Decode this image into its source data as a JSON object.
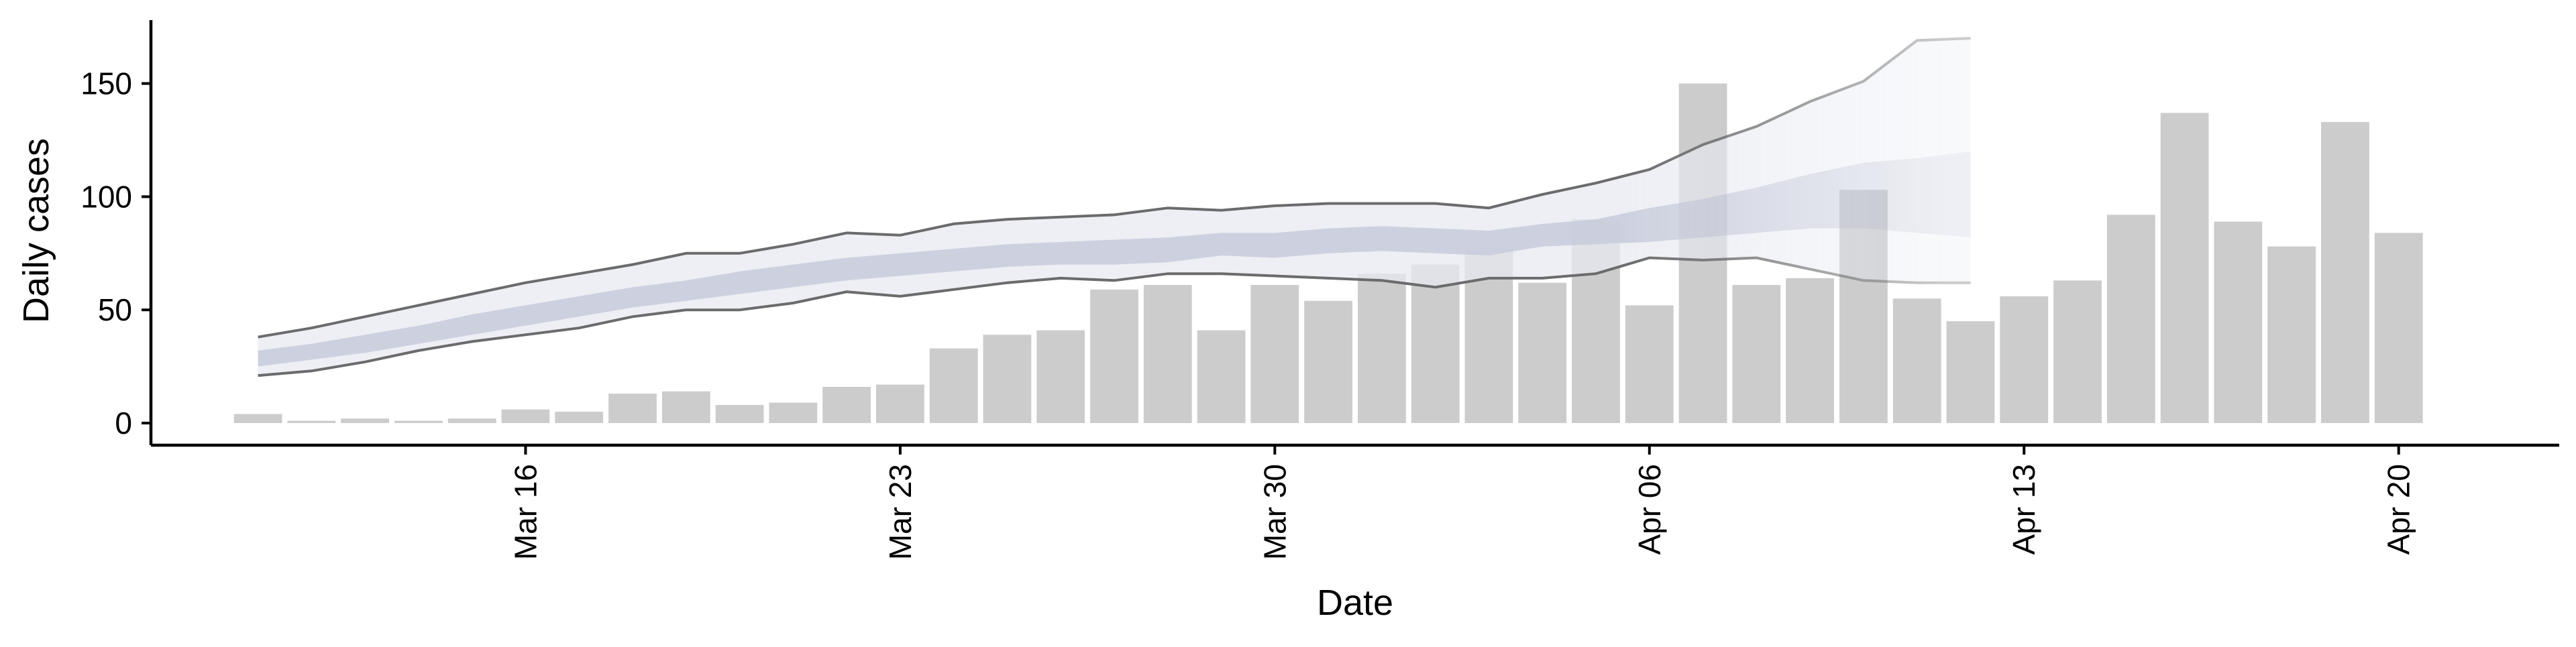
{
  "chart_data": {
    "type": "bar",
    "title": "",
    "xlabel": "Date",
    "ylabel": "Daily cases",
    "ylim": [
      -8,
      178
    ],
    "y_ticks": [
      0,
      50,
      100,
      150
    ],
    "x_tick_labels": [
      {
        "date": "2020-03-16",
        "label": "Mar 16"
      },
      {
        "date": "2020-03-23",
        "label": "Mar 23"
      },
      {
        "date": "2020-03-30",
        "label": "Mar 30"
      },
      {
        "date": "2020-04-06",
        "label": "Apr 06"
      },
      {
        "date": "2020-04-13",
        "label": "Apr 13"
      },
      {
        "date": "2020-04-20",
        "label": "Apr 20"
      }
    ],
    "xlim": [
      "2020-03-09",
      "2020-04-23"
    ],
    "grid": false,
    "colors": {
      "bars": "#cccccc",
      "inner_band": "#c8ccdc",
      "outer_band": "#e7e9f1",
      "bound_lines": "#6b6b6b",
      "axis": "#000000"
    },
    "bars": {
      "dates": [
        "2020-03-11",
        "2020-03-12",
        "2020-03-13",
        "2020-03-14",
        "2020-03-15",
        "2020-03-16",
        "2020-03-17",
        "2020-03-18",
        "2020-03-19",
        "2020-03-20",
        "2020-03-21",
        "2020-03-22",
        "2020-03-23",
        "2020-03-24",
        "2020-03-25",
        "2020-03-26",
        "2020-03-27",
        "2020-03-28",
        "2020-03-29",
        "2020-03-30",
        "2020-03-31",
        "2020-04-01",
        "2020-04-02",
        "2020-04-03",
        "2020-04-04",
        "2020-04-05",
        "2020-04-06",
        "2020-04-07",
        "2020-04-08",
        "2020-04-09",
        "2020-04-10",
        "2020-04-11",
        "2020-04-12",
        "2020-04-13",
        "2020-04-14",
        "2020-04-15",
        "2020-04-16",
        "2020-04-17",
        "2020-04-18",
        "2020-04-19",
        "2020-04-20",
        "2020-04-21"
      ],
      "values": [
        4,
        1,
        2,
        1,
        2,
        6,
        5,
        13,
        14,
        8,
        9,
        16,
        17,
        33,
        39,
        41,
        59,
        61,
        41,
        61,
        54,
        66,
        70,
        77,
        62,
        90,
        52,
        150,
        61,
        64,
        103,
        55,
        45,
        56,
        63,
        92,
        137,
        89,
        78,
        133,
        84,
        0
      ]
    },
    "estimate": {
      "dates": [
        "2020-03-11",
        "2020-03-12",
        "2020-03-13",
        "2020-03-14",
        "2020-03-15",
        "2020-03-16",
        "2020-03-17",
        "2020-03-18",
        "2020-03-19",
        "2020-03-20",
        "2020-03-21",
        "2020-03-22",
        "2020-03-23",
        "2020-03-24",
        "2020-03-25",
        "2020-03-26",
        "2020-03-27",
        "2020-03-28",
        "2020-03-29",
        "2020-03-30",
        "2020-03-31",
        "2020-04-01",
        "2020-04-02",
        "2020-04-03",
        "2020-04-04",
        "2020-04-05",
        "2020-04-06",
        "2020-04-07",
        "2020-04-08",
        "2020-04-09",
        "2020-04-10",
        "2020-04-11",
        "2020-04-12"
      ],
      "upper_90": [
        38,
        42,
        47,
        52,
        57,
        62,
        66,
        70,
        75,
        75,
        79,
        84,
        83,
        88,
        90,
        91,
        92,
        95,
        94,
        96,
        97,
        97,
        97,
        95,
        101,
        106,
        112,
        123,
        131,
        142,
        151,
        169,
        170
      ],
      "inner_upper": [
        32,
        35,
        39,
        43,
        48,
        52,
        56,
        60,
        63,
        67,
        70,
        73,
        75,
        77,
        79,
        80,
        81,
        82,
        84,
        84,
        86,
        87,
        86,
        85,
        88,
        90,
        95,
        99,
        104,
        110,
        115,
        117,
        120
      ],
      "inner_lower": [
        25,
        28,
        31,
        35,
        39,
        43,
        47,
        51,
        54,
        57,
        60,
        63,
        65,
        67,
        69,
        70,
        70,
        71,
        74,
        73,
        75,
        76,
        75,
        74,
        78,
        79,
        80,
        82,
        84,
        86,
        86,
        84,
        82
      ],
      "lower_90": [
        21,
        23,
        27,
        32,
        36,
        39,
        42,
        47,
        50,
        50,
        53,
        58,
        56,
        59,
        62,
        64,
        63,
        66,
        66,
        65,
        64,
        63,
        60,
        64,
        64,
        66,
        73,
        72,
        73,
        68,
        63,
        62,
        62
      ],
      "faded_from": "2020-04-06"
    },
    "bound_lines_dates": [
      "2020-03-11",
      "2020-03-12",
      "2020-03-13",
      "2020-03-14",
      "2020-03-15",
      "2020-03-16",
      "2020-03-17",
      "2020-03-18",
      "2020-03-19",
      "2020-03-20",
      "2020-03-21",
      "2020-03-22",
      "2020-03-23",
      "2020-03-24",
      "2020-03-25",
      "2020-03-26",
      "2020-03-27",
      "2020-03-28",
      "2020-03-29",
      "2020-03-30",
      "2020-03-31",
      "2020-04-01",
      "2020-04-02",
      "2020-04-03",
      "2020-04-04",
      "2020-04-05",
      "2020-04-06",
      "2020-04-07",
      "2020-04-08",
      "2020-04-09",
      "2020-04-10",
      "2020-04-11",
      "2020-04-12"
    ]
  }
}
